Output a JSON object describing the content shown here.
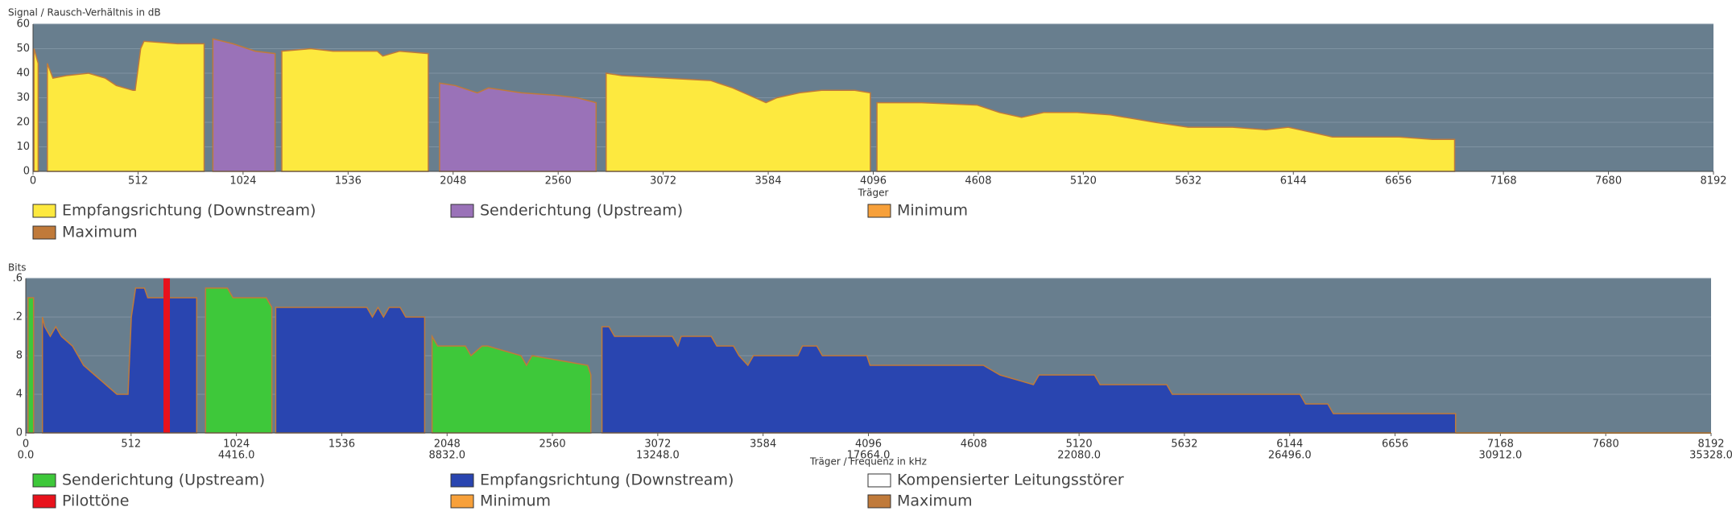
{
  "chart_data": [
    {
      "type": "area",
      "title": "Signal / Rausch-Verhältnis in dB",
      "xlabel": "Träger",
      "xlim": [
        0,
        8192
      ],
      "xticks": [
        0,
        512,
        1024,
        1536,
        2048,
        2560,
        3072,
        3584,
        4096,
        4608,
        5120,
        5632,
        6144,
        6656,
        7168,
        7680,
        8192
      ],
      "ylim": [
        0,
        60
      ],
      "yticks": [
        0,
        10,
        20,
        30,
        40,
        50,
        60
      ],
      "grid": true,
      "series": [
        {
          "name": "Empfangsrichtung (Downstream)",
          "color": "#fde93f",
          "x": [
            5,
            25,
            null,
            70,
            97,
            162,
            271,
            352,
            406,
            487,
            498,
            525,
            541,
            704,
            834,
            null,
            1213,
            1354,
            1462,
            1678,
            1705,
            1786,
            1927,
            null,
            2794,
            2870,
            3086,
            3303,
            3411,
            3519,
            3573,
            3627,
            3736,
            3844,
            4006,
            4082,
            null,
            4114,
            4331,
            4602,
            4711,
            4819,
            4927,
            5090,
            5252,
            5469,
            5631,
            5848,
            6010,
            6119,
            6227,
            6335,
            6660,
            6822,
            6930
          ],
          "values": [
            50,
            44,
            null,
            44,
            38,
            39,
            40,
            38,
            35,
            33,
            33,
            50,
            53,
            52,
            52,
            null,
            49,
            50,
            49,
            49,
            47,
            49,
            48,
            null,
            40,
            39,
            38,
            37,
            34,
            30,
            28,
            30,
            32,
            33,
            33,
            32,
            null,
            28,
            28,
            27,
            24,
            22,
            24,
            24,
            23,
            20,
            18,
            18,
            17,
            18,
            16,
            14,
            14,
            13,
            13
          ]
        },
        {
          "name": "Senderichtung (Upstream)",
          "color": "#9a72b8",
          "x": [
            877,
            975,
            1083,
            1180,
            null,
            1982,
            2058,
            2166,
            2220,
            2382,
            2545,
            2653,
            2745
          ],
          "values": [
            54,
            52,
            49,
            48,
            null,
            36,
            35,
            32,
            34,
            32,
            31,
            30,
            28
          ]
        },
        {
          "name": "Minimum",
          "color": "#f7a03a"
        },
        {
          "name": "Maximum",
          "color": "#c07a3a",
          "outline": true
        }
      ]
    },
    {
      "type": "area",
      "title": "Bits",
      "xlabel": "Träger / Frequenz in kHz",
      "xlim": [
        0,
        8192
      ],
      "xticks": [
        0,
        512,
        1024,
        1536,
        2048,
        2560,
        3072,
        3584,
        4096,
        4608,
        5120,
        5632,
        6144,
        6656,
        7168,
        7680,
        8192
      ],
      "x2lim": [
        0,
        35328
      ],
      "x2ticks": [
        {
          "value": 0,
          "label": "0.0"
        },
        {
          "value": 4416,
          "label": "4416.0"
        },
        {
          "value": 8832,
          "label": "8832.0"
        },
        {
          "value": 13248,
          "label": "13248.0"
        },
        {
          "value": 17664,
          "label": "17664.0"
        },
        {
          "value": 22080,
          "label": "22080.0"
        },
        {
          "value": 26496,
          "label": "26496.0"
        },
        {
          "value": 30912,
          "label": "30912.0"
        },
        {
          "value": 35328,
          "label": "35328.0"
        }
      ],
      "ylim": [
        0,
        16
      ],
      "yticks": [
        0,
        4,
        8,
        {
          "value": 12,
          "label": ".2"
        },
        {
          "value": 16,
          "label": ".6"
        }
      ],
      "grid": true,
      "series": [
        {
          "name": "Senderichtung (Upstream)",
          "color": "#3ec83a",
          "x": [
            11,
            38,
            null,
            874,
            980,
            1007,
            1169,
            1196,
            null,
            1975,
            2002,
            2137,
            2164,
            2218,
            2245,
            2407,
            2434,
            2461,
            2731,
            2747
          ],
          "values": [
            14,
            14,
            null,
            15,
            15,
            14,
            14,
            13,
            null,
            10,
            9,
            9,
            8,
            9,
            9,
            8,
            7,
            8,
            7,
            6
          ]
        },
        {
          "name": "Empfangsrichtung (Downstream)",
          "color": "#2945b0",
          "x": [
            81,
            92,
            119,
            146,
            173,
            227,
            254,
            281,
            335,
            389,
            443,
            497,
            513,
            534,
            577,
            593,
            831,
            null,
            1215,
            1658,
            1685,
            1712,
            1739,
            1766,
            1820,
            1847,
            1939,
            null,
            2801,
            2835,
            2862,
            3143,
            3170,
            3186,
            3332,
            3359,
            3440,
            3467,
            3510,
            3537,
            3753,
            3775,
            3845,
            3872,
            4088,
            4104,
            4655,
            4736,
            4898,
            4925,
            5195,
            5222,
            5546,
            5573,
            6194,
            6221,
            6329,
            6356,
            6950
          ],
          "values": [
            12,
            11,
            10,
            11,
            10,
            9,
            8,
            7,
            6,
            5,
            4,
            4,
            12,
            15,
            15,
            14,
            14,
            null,
            13,
            13,
            12,
            13,
            12,
            13,
            13,
            12,
            12,
            null,
            11,
            11,
            10,
            10,
            9,
            10,
            10,
            9,
            9,
            8,
            7,
            8,
            8,
            9,
            9,
            8,
            8,
            7,
            7,
            6,
            5,
            6,
            6,
            5,
            5,
            4,
            4,
            3,
            3,
            2,
            2
          ]
        },
        {
          "name": "Kompensierter Leitungsstörer",
          "color": "#ffffff"
        },
        {
          "name": "Pilottöne",
          "color": "#e8121c",
          "kind": "bar",
          "x": [
            685
          ],
          "values": [
            16
          ]
        },
        {
          "name": "Minimum",
          "color": "#f7a03a",
          "kind": "line",
          "x": [
            6950,
            8192
          ],
          "values": [
            0,
            0
          ]
        },
        {
          "name": "Maximum",
          "color": "#c07a3a",
          "outline": true
        }
      ]
    }
  ]
}
